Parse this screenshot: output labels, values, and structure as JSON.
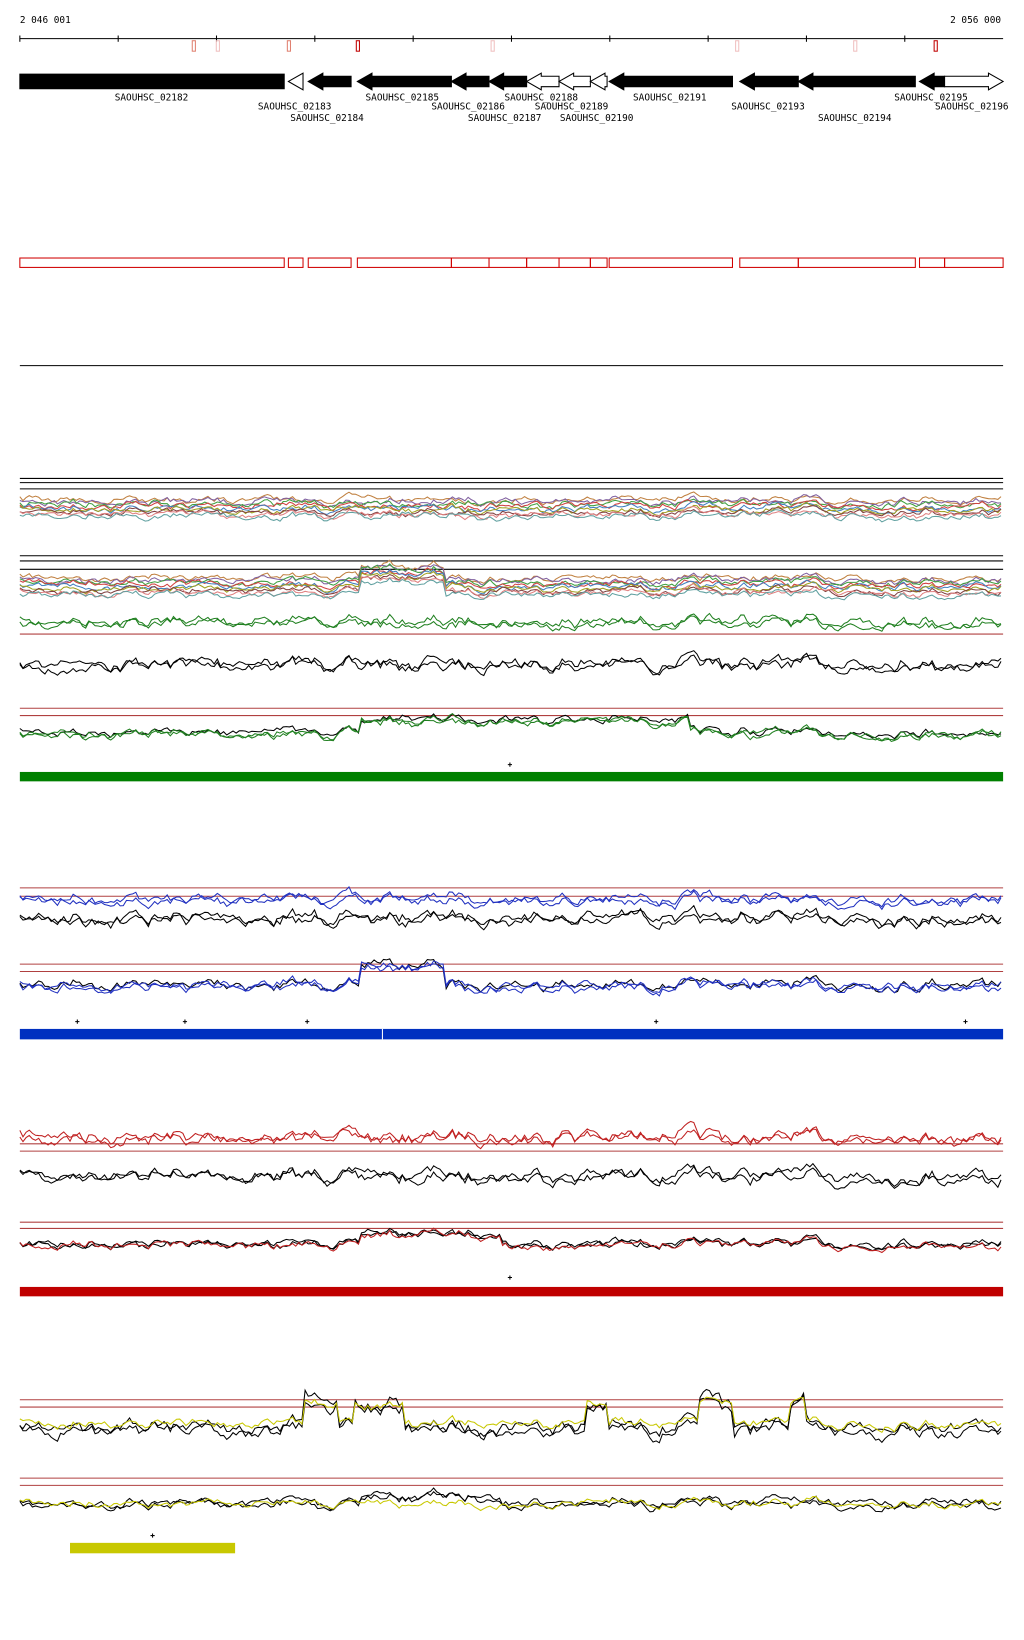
{
  "ruler": {
    "start": "2 046 001",
    "end": "2 056 000"
  },
  "genes": [
    "SAOUHSC_02182",
    "SAOUHSC_02183",
    "SAOUHSC_02184",
    "SAOUHSC_02185",
    "SAOUHSC_02186",
    "SAOUHSC_02187",
    "SAOUHSC_02188",
    "SAOUHSC_02189",
    "SAOUHSC_02190",
    "SAOUHSC_02191",
    "SAOUHSC_02193",
    "SAOUHSC_02194",
    "SAOUHSC_02195",
    "SAOUHSC_02196"
  ]
}
